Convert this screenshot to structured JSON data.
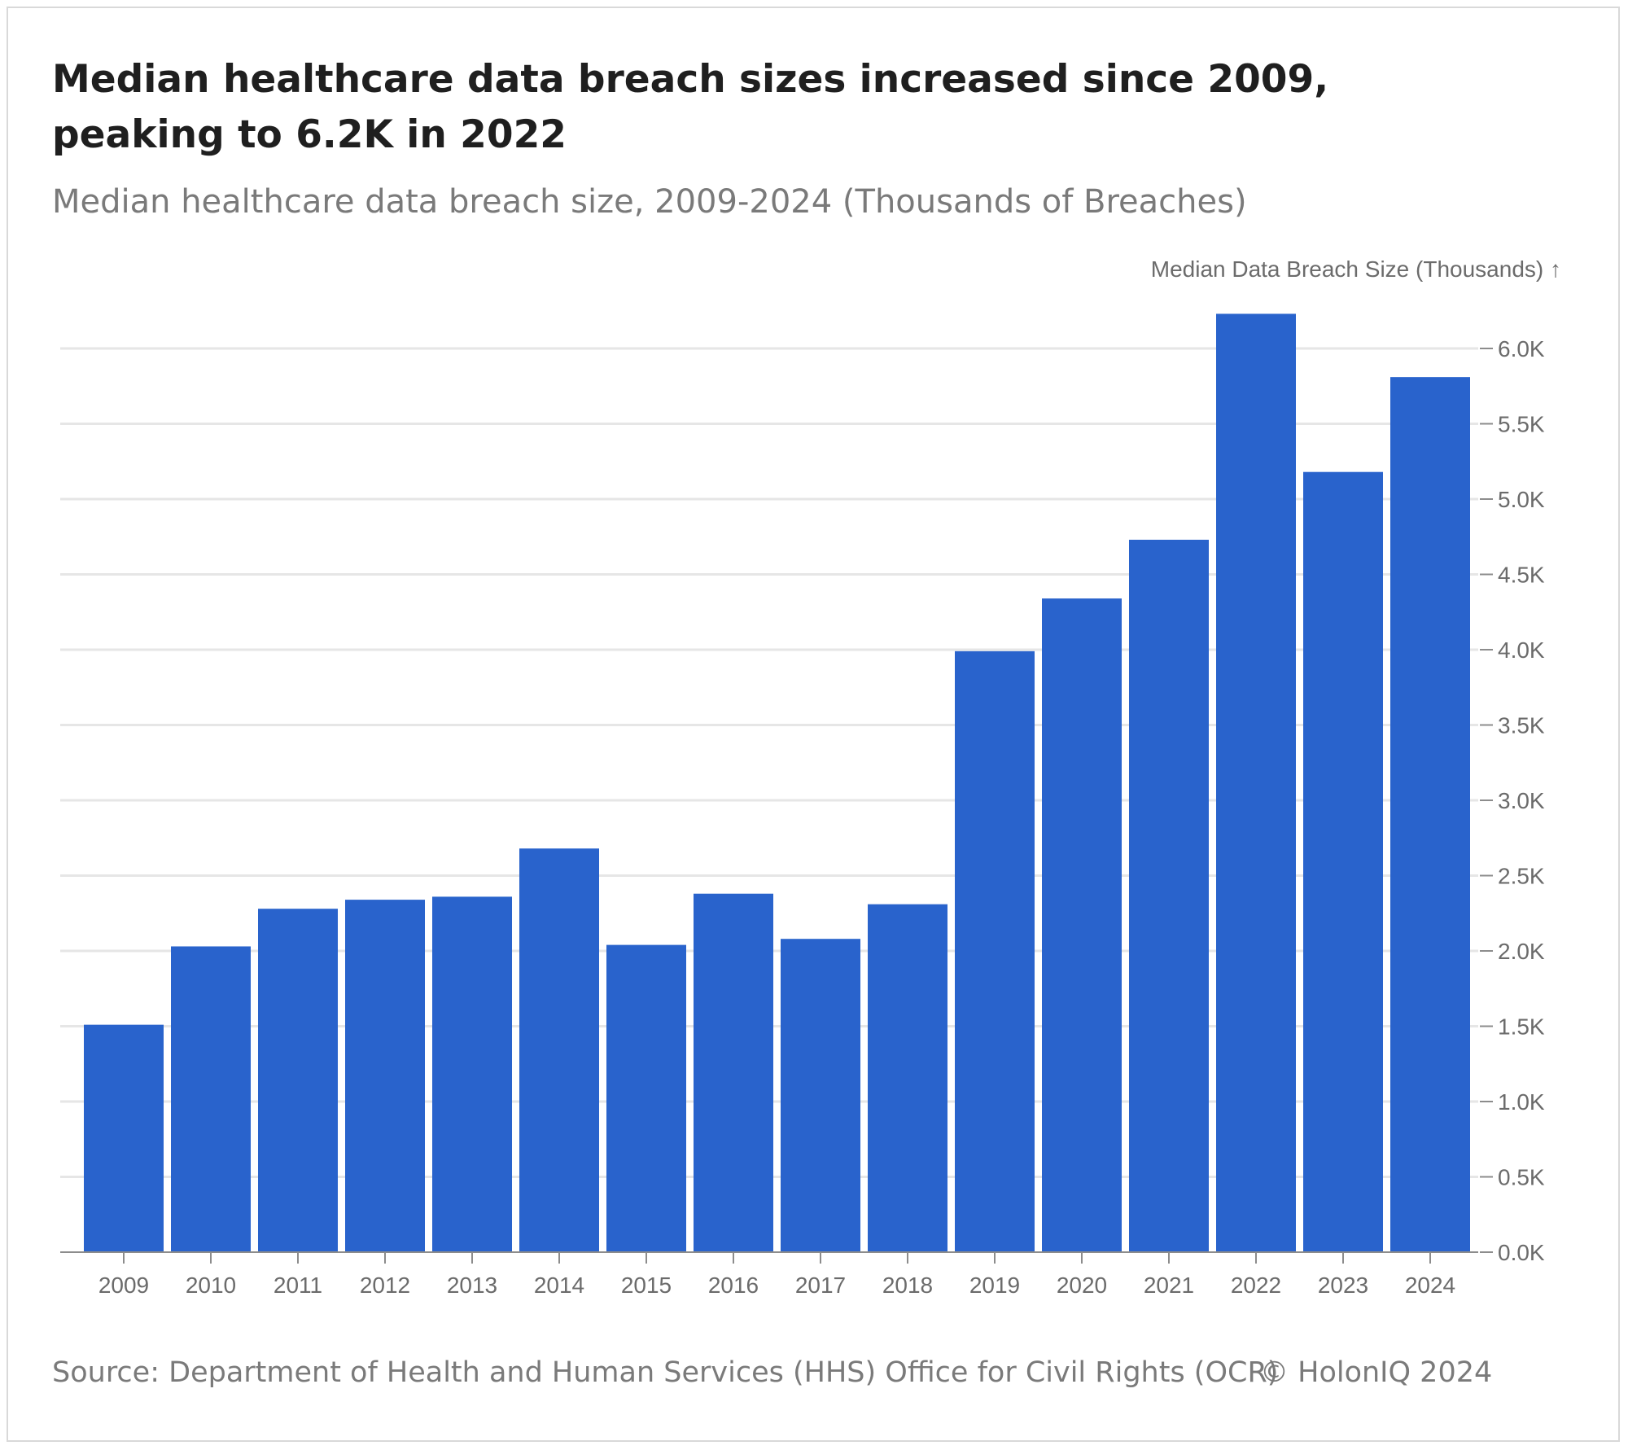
{
  "title": "Median healthcare data breach sizes increased since 2009, peaking to 6.2K in 2022",
  "subtitle": "Median healthcare data breach size, 2009-2024 (Thousands of Breaches)",
  "footer": {
    "source": "Source: Department of Health and Human Services (HHS) Office for Civil Rights (OCR)",
    "copyright": "© HolonIQ 2024"
  },
  "chart_data": {
    "type": "bar",
    "title": "Median healthcare data breach sizes increased since 2009, peaking to 6.2K in 2022",
    "subtitle": "Median healthcare data breach size, 2009-2024 (Thousands of Breaches)",
    "ylabel": "Median Data Breach Size (Thousands) ↑",
    "xlabel": "",
    "y_axis_position": "right",
    "categories": [
      "2009",
      "2010",
      "2011",
      "2012",
      "2013",
      "2014",
      "2015",
      "2016",
      "2017",
      "2018",
      "2019",
      "2020",
      "2021",
      "2022",
      "2023",
      "2024"
    ],
    "values": [
      1.51,
      2.03,
      2.28,
      2.34,
      2.36,
      2.68,
      2.04,
      2.38,
      2.08,
      2.31,
      3.99,
      4.34,
      4.73,
      6.23,
      5.18,
      5.81
    ],
    "ylim": [
      0,
      6.0
    ],
    "yticks": [
      0,
      0.5,
      1.0,
      1.5,
      2.0,
      2.5,
      3.0,
      3.5,
      4.0,
      4.5,
      5.0,
      5.5,
      6.0
    ],
    "ytick_labels": [
      "0.0K",
      "0.5K",
      "1.0K",
      "1.5K",
      "2.0K",
      "2.5K",
      "3.0K",
      "3.5K",
      "4.0K",
      "4.5K",
      "5.0K",
      "5.5K",
      "6.0K"
    ],
    "grid": true,
    "colors": {
      "bar": "#2963cc",
      "grid": "#e6e6e6",
      "axis": "#8c8c8c"
    }
  }
}
